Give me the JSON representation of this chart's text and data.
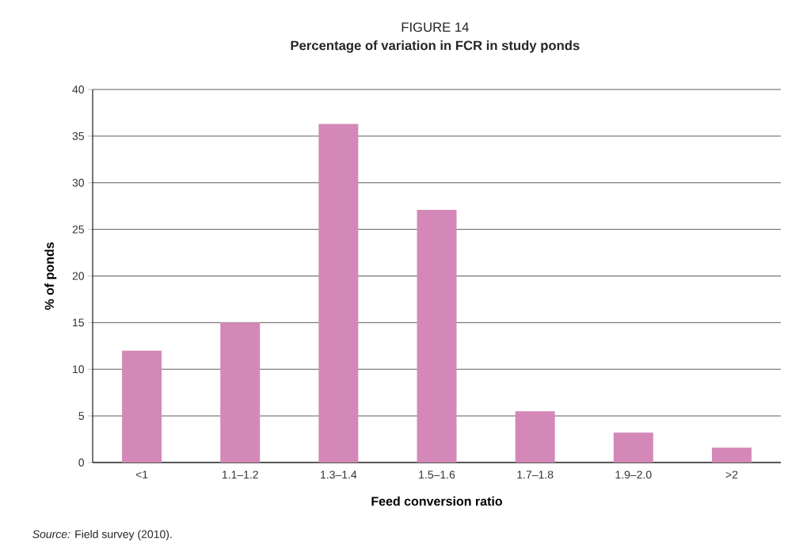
{
  "chart_data": {
    "type": "bar",
    "title": "FIGURE 14",
    "subtitle": "Percentage of variation in FCR in study ponds",
    "xlabel": "Feed conversion ratio",
    "ylabel": "% of ponds",
    "categories": [
      "<1",
      "1.1–1.2",
      "1.3–1.4",
      "1.5–1.6",
      "1.7–1.8",
      "1.9–2.0",
      ">2"
    ],
    "values": [
      12,
      15,
      36.3,
      27.1,
      5.5,
      3.2,
      1.6
    ],
    "color": "#d488b8",
    "ylim": [
      0,
      40
    ],
    "yticks": [
      0,
      5,
      10,
      15,
      20,
      25,
      30,
      35,
      40
    ],
    "grid": "y",
    "annotations": [
      "*Source:* Field survey (2010)."
    ]
  }
}
